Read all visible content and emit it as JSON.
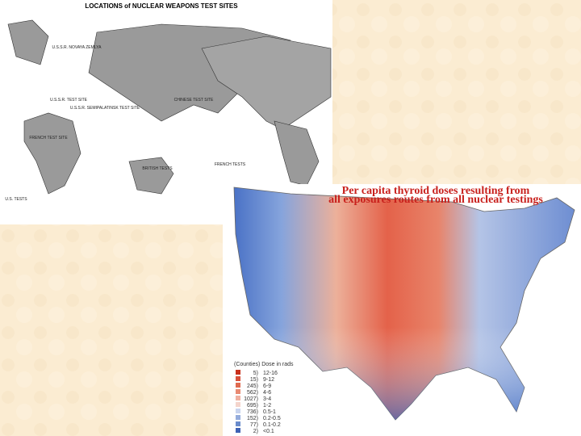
{
  "world_map": {
    "title": "LOCATIONS of NUCLEAR WEAPONS TEST SITES",
    "labels": [
      "U.S.S.R. NOVAYA ZEMLYA",
      "U.S.S.R. TEST SITE",
      "U.S.S.R. SEMIPALATINSK TEST SITE",
      "CHINESE TEST SITE",
      "FRENCH TEST SITE",
      "BRITISH TESTS",
      "U.S. TESTS",
      "FRENCH TESTS"
    ]
  },
  "us_map": {
    "title_lines": [
      "Per capita thyroid doses resulting from",
      "all exposures routes from all nuclear testings"
    ],
    "legend": {
      "header": "(Counties) Dose in rads",
      "rows": [
        [
          "5)",
          "12-16"
        ],
        [
          "15)",
          "9-12"
        ],
        [
          "245)",
          "6-9"
        ],
        [
          "562)",
          "4-6"
        ],
        [
          "1027)",
          "3-4"
        ],
        [
          "695)",
          "1-2"
        ],
        [
          "736)",
          "0.5-1"
        ],
        [
          "152)",
          "0.2-0.5"
        ],
        [
          "77)",
          "0.1-0.2"
        ],
        [
          "2)",
          "<0.1"
        ]
      ]
    }
  }
}
